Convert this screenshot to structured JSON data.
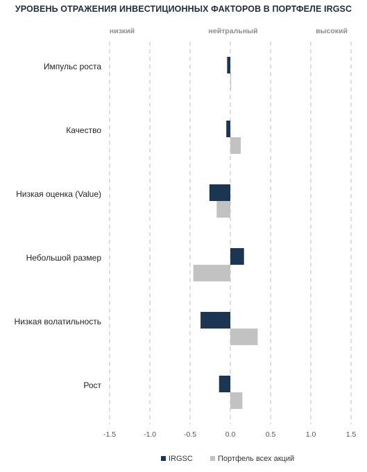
{
  "chart_data": {
    "type": "bar",
    "orientation": "horizontal",
    "title": "УРОВЕНЬ ОТРАЖЕНИЯ ИНВЕСТИЦИОННЫХ ФАКТОРОВ В ПОРТФЕЛЕ IRGSC",
    "band_labels": [
      "низкий",
      "нейтральный",
      "высокий"
    ],
    "categories": [
      "Импульс роста",
      "Качество",
      "Низкая оценка (Value)",
      "Небольшой размер",
      "Низкая волатильность",
      "Рост"
    ],
    "series": [
      {
        "name": "IRGSC",
        "color": "#1b3553",
        "values": [
          -0.04,
          -0.05,
          -0.26,
          0.17,
          -0.37,
          -0.14
        ]
      },
      {
        "name": "Портфель всех акций",
        "color": "#c2c2c2",
        "values": [
          0.01,
          0.13,
          -0.17,
          -0.46,
          0.34,
          0.15
        ]
      }
    ],
    "xlim": [
      -1.5,
      1.5
    ],
    "xticks": [
      -1.5,
      -1.0,
      -0.5,
      0.0,
      0.5,
      1.0,
      1.5
    ],
    "xtick_labels": [
      "-1.5",
      "-1.0",
      "-0.5",
      "0.0",
      "0.5",
      "1.0",
      "1.5"
    ],
    "grid": "vertical dashed",
    "legend": "bottom"
  }
}
